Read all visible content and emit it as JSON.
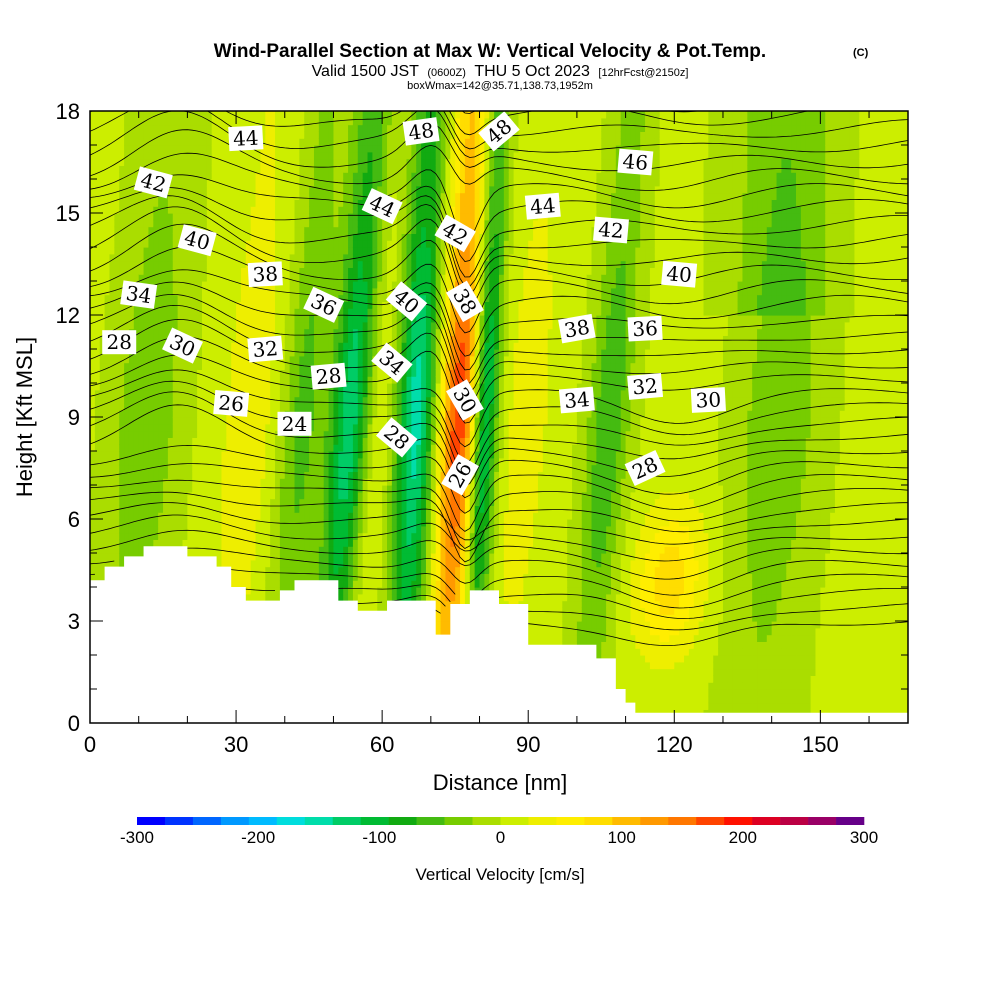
{
  "header": {
    "title": "Wind-Parallel Section at Max W: Vertical Velocity & Pot.Temp.",
    "copyright_mark": "(C)",
    "valid_prefix": "Valid 1500 JST",
    "valid_utc": "(0600Z)",
    "valid_date": "THU 5 Oct 2023",
    "forecast_info": "[12hrFcst@2150z]",
    "box_info": "boxWmax=142@35.71,138.73,1952m"
  },
  "chart_data": {
    "type": "heatmap",
    "xlabel": "Distance [nm]",
    "ylabel": "Height [Kft MSL]",
    "xlim": [
      0,
      168
    ],
    "ylim": [
      0,
      18
    ],
    "x_ticks": [
      0,
      30,
      60,
      90,
      120,
      150
    ],
    "y_ticks": [
      0,
      3,
      6,
      9,
      12,
      15,
      18
    ],
    "colorbar": {
      "title": "Vertical Velocity [cm/s]",
      "ticks": [
        -300,
        -200,
        -100,
        0,
        100,
        200,
        300
      ],
      "range": [
        -300,
        300
      ],
      "colors": [
        "#0000ff",
        "#0033ff",
        "#0066ff",
        "#0099ff",
        "#00bbff",
        "#00dddd",
        "#00ddaa",
        "#00cc66",
        "#00bb33",
        "#11aa11",
        "#44bb11",
        "#77cc00",
        "#aadd00",
        "#ccee00",
        "#eeee00",
        "#ffee00",
        "#ffdd00",
        "#ffbb00",
        "#ff9900",
        "#ff7700",
        "#ff4400",
        "#ff1100",
        "#dd0022",
        "#bb0044",
        "#990066",
        "#660088"
      ]
    },
    "velocity_features": [
      {
        "x": 10,
        "width": 5,
        "value": -40
      },
      {
        "x": 31,
        "width": 4,
        "value": 30
      },
      {
        "x": 42,
        "width": 3,
        "value": -50
      },
      {
        "x": 52,
        "width": 3,
        "value": -120
      },
      {
        "x": 57,
        "width": 3,
        "value": 30
      },
      {
        "x": 66,
        "width": 3,
        "value": -130
      },
      {
        "x": 75,
        "width": 3,
        "value": 150
      },
      {
        "x": 80,
        "width": 2,
        "value": -130
      },
      {
        "x": 88,
        "width": 4,
        "value": 25
      },
      {
        "x": 105,
        "width": 3,
        "value": -60
      },
      {
        "x": 120,
        "width": 5,
        "value": 60
      },
      {
        "x": 140,
        "width": 6,
        "value": -40
      }
    ],
    "terrain_kft": [
      [
        0,
        4.2
      ],
      [
        3,
        4.6
      ],
      [
        7,
        4.9
      ],
      [
        11,
        5.2
      ],
      [
        20,
        4.9
      ],
      [
        26,
        4.6
      ],
      [
        29,
        4.0
      ],
      [
        32,
        3.6
      ],
      [
        39,
        3.9
      ],
      [
        42,
        4.2
      ],
      [
        51,
        3.6
      ],
      [
        55,
        3.3
      ],
      [
        61,
        3.6
      ],
      [
        71,
        2.6
      ],
      [
        74,
        3.5
      ],
      [
        78,
        3.9
      ],
      [
        84,
        3.5
      ],
      [
        90,
        2.3
      ],
      [
        104,
        1.9
      ],
      [
        108,
        1.0
      ],
      [
        110,
        0.6
      ],
      [
        112,
        0.3
      ],
      [
        168,
        0.3
      ]
    ],
    "theta_contour_labels": [
      {
        "x": 32,
        "y": 17.2,
        "text": "44",
        "angle": -3
      },
      {
        "x": 13,
        "y": 15.9,
        "text": "42",
        "angle": 15
      },
      {
        "x": 22,
        "y": 14.2,
        "text": "40",
        "angle": 15
      },
      {
        "x": 10,
        "y": 12.6,
        "text": "34",
        "angle": 8
      },
      {
        "x": 36,
        "y": 13.2,
        "text": "38",
        "angle": -3
      },
      {
        "x": 48,
        "y": 12.3,
        "text": "36",
        "angle": 25
      },
      {
        "x": 6,
        "y": 11.2,
        "text": "28",
        "angle": 0
      },
      {
        "x": 19,
        "y": 11.1,
        "text": "30",
        "angle": 25
      },
      {
        "x": 36,
        "y": 11.0,
        "text": "32",
        "angle": -5
      },
      {
        "x": 49,
        "y": 10.2,
        "text": "28",
        "angle": -5
      },
      {
        "x": 29,
        "y": 9.4,
        "text": "26",
        "angle": 5
      },
      {
        "x": 42,
        "y": 8.8,
        "text": "24",
        "angle": 0
      },
      {
        "x": 60,
        "y": 15.2,
        "text": "44",
        "angle": 25
      },
      {
        "x": 68,
        "y": 17.4,
        "text": "48",
        "angle": -8
      },
      {
        "x": 84,
        "y": 17.4,
        "text": "48",
        "angle": -40
      },
      {
        "x": 75,
        "y": 14.4,
        "text": "42",
        "angle": 30
      },
      {
        "x": 65,
        "y": 12.4,
        "text": "40",
        "angle": 40
      },
      {
        "x": 77,
        "y": 12.4,
        "text": "38",
        "angle": 60
      },
      {
        "x": 62,
        "y": 10.6,
        "text": "34",
        "angle": 40
      },
      {
        "x": 77,
        "y": 9.5,
        "text": "30",
        "angle": 60
      },
      {
        "x": 63,
        "y": 8.4,
        "text": "28",
        "angle": 40
      },
      {
        "x": 76,
        "y": 7.3,
        "text": "26",
        "angle": -60
      },
      {
        "x": 93,
        "y": 15.2,
        "text": "44",
        "angle": -5
      },
      {
        "x": 112,
        "y": 16.5,
        "text": "46",
        "angle": 5
      },
      {
        "x": 107,
        "y": 14.5,
        "text": "42",
        "angle": 5
      },
      {
        "x": 121,
        "y": 13.2,
        "text": "40",
        "angle": 5
      },
      {
        "x": 100,
        "y": 11.6,
        "text": "38",
        "angle": -10
      },
      {
        "x": 114,
        "y": 11.6,
        "text": "36",
        "angle": -3
      },
      {
        "x": 100,
        "y": 9.5,
        "text": "34",
        "angle": -5
      },
      {
        "x": 114,
        "y": 9.9,
        "text": "32",
        "angle": -5
      },
      {
        "x": 127,
        "y": 9.5,
        "text": "30",
        "angle": -3
      },
      {
        "x": 114,
        "y": 7.5,
        "text": "28",
        "angle": -25
      }
    ]
  }
}
